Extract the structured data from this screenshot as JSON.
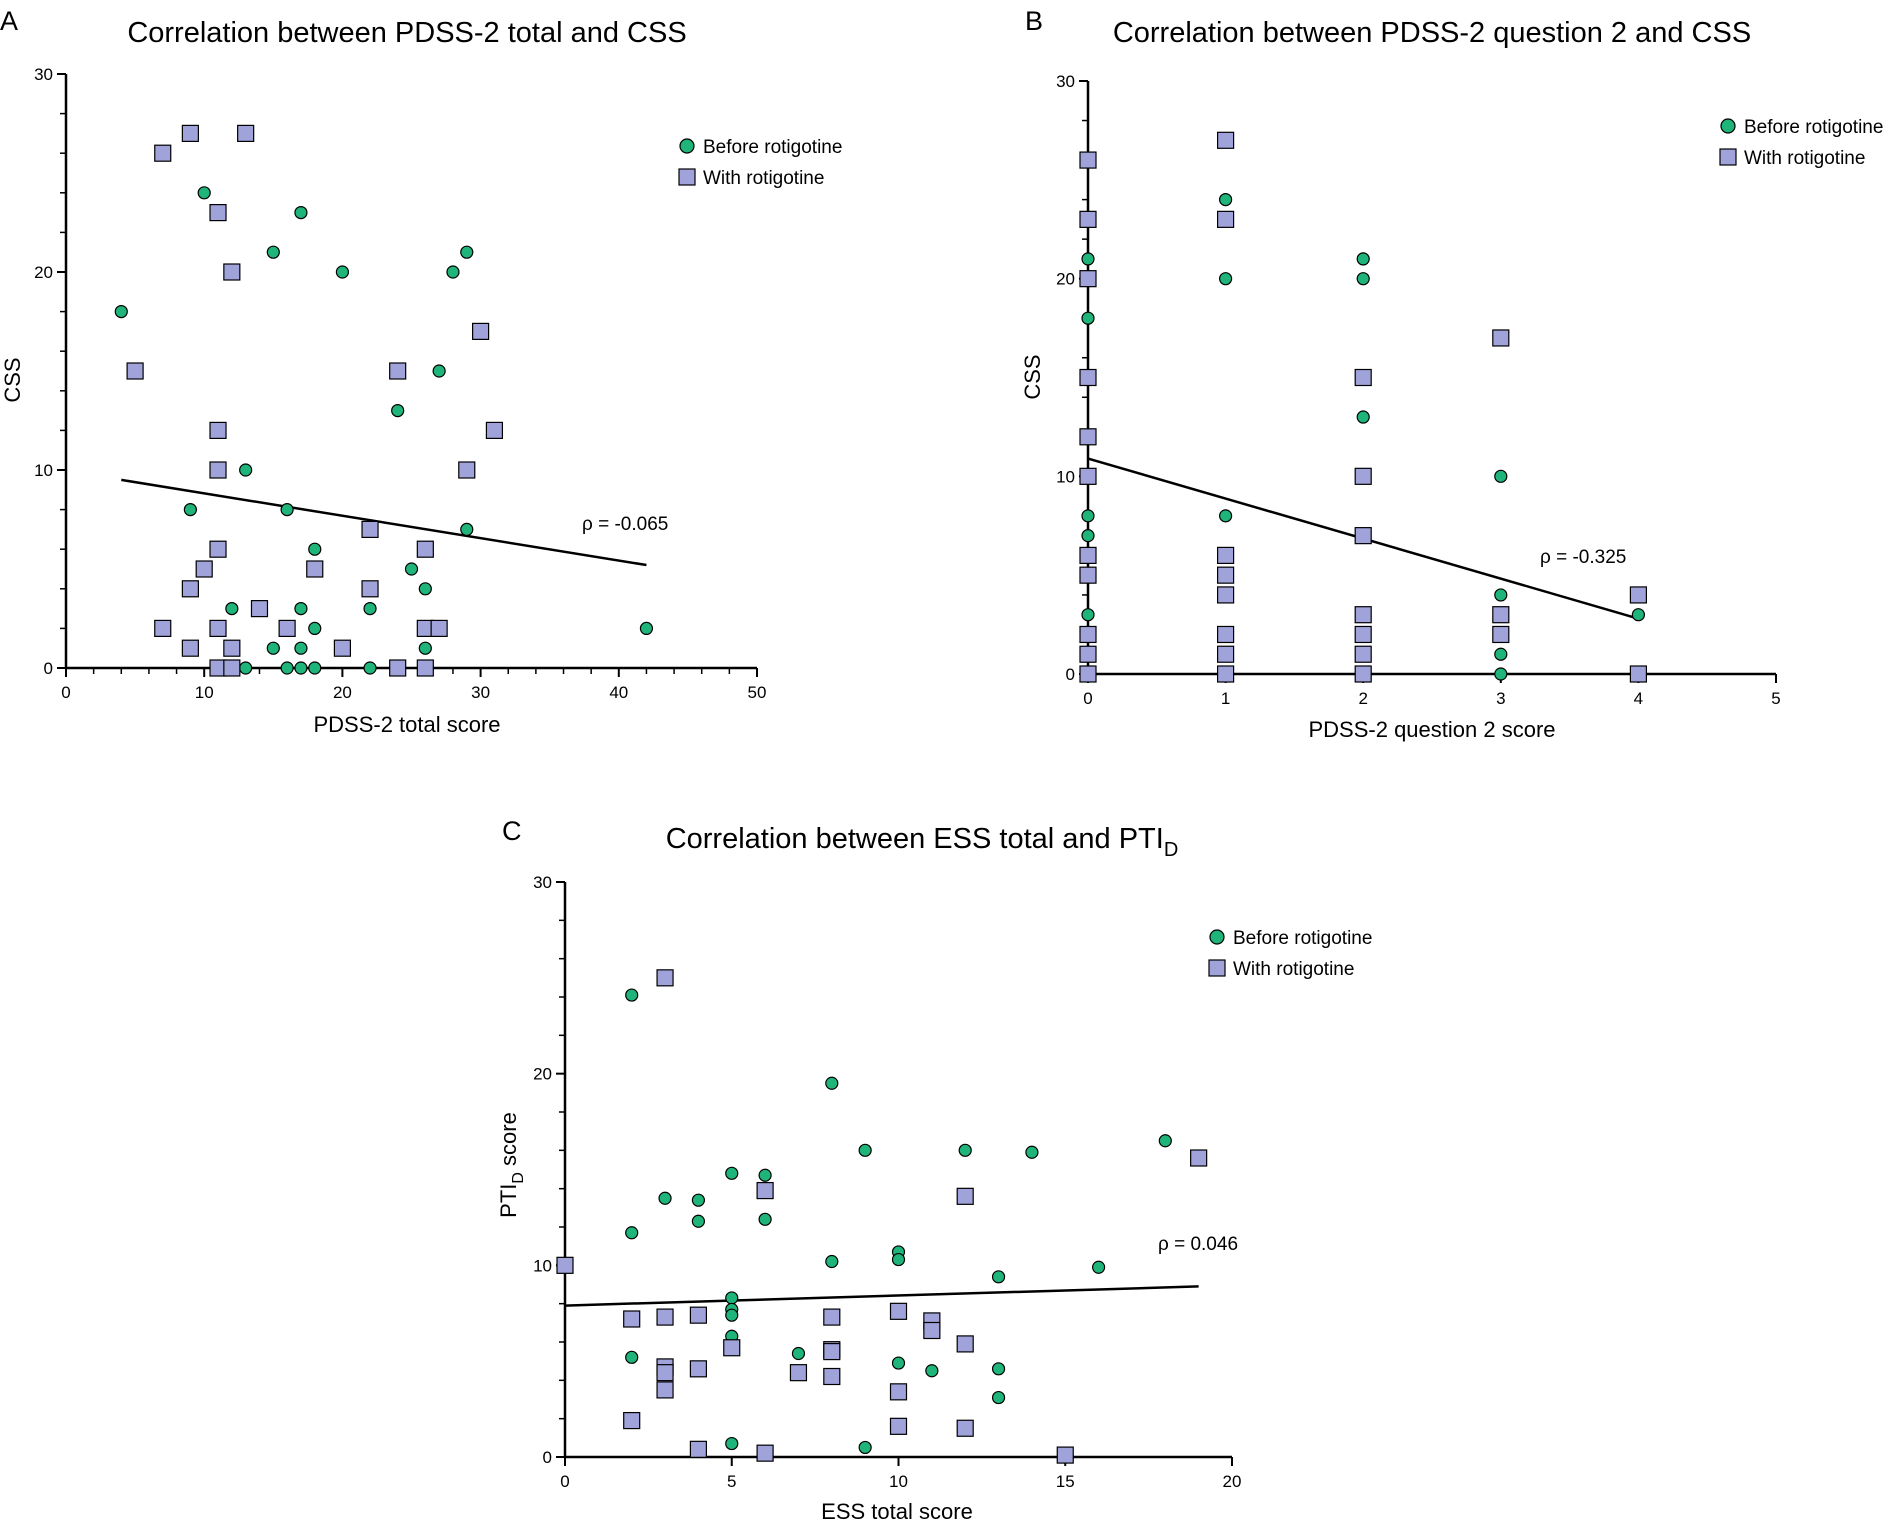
{
  "chart_data": [
    {
      "type": "scatter",
      "panel": "A",
      "title": "Correlation between PDSS-2 total and CSS",
      "xlabel": "PDSS-2 total score",
      "ylabel": "CSS",
      "xlim": [
        0,
        50
      ],
      "ylim": [
        0,
        30
      ],
      "x_ticks": [
        0,
        10,
        20,
        30,
        40,
        50
      ],
      "y_ticks": [
        0,
        10,
        20,
        30
      ],
      "legend_position": "top-right",
      "correlation_label": "ρ = -0.065",
      "fit_line": {
        "x": [
          4,
          42
        ],
        "y": [
          9.5,
          5.2
        ]
      },
      "series": [
        {
          "name": "Before rotigotine",
          "marker": "circle",
          "color": "#1fb57a",
          "x": [
            4,
            10,
            17,
            15,
            20,
            28,
            29,
            27,
            24,
            13,
            9,
            16,
            29,
            18,
            25,
            26,
            12,
            17,
            18,
            22,
            26,
            15,
            17,
            13,
            16,
            17,
            18,
            22,
            26,
            42
          ],
          "y": [
            18,
            24,
            23,
            21,
            20,
            20,
            21,
            15,
            13,
            10,
            8,
            8,
            7,
            6,
            5,
            4,
            3,
            3,
            2,
            3,
            1,
            1,
            1,
            0,
            0,
            0,
            0,
            0,
            0,
            2
          ]
        },
        {
          "name": "With rotigotine",
          "marker": "square",
          "color": "#9fa3d9",
          "x": [
            9,
            13,
            7,
            11,
            12,
            5,
            30,
            24,
            11,
            31,
            11,
            29,
            22,
            11,
            26,
            10,
            18,
            9,
            22,
            14,
            7,
            11,
            16,
            26,
            27,
            9,
            12,
            20,
            11,
            12,
            24,
            26
          ],
          "y": [
            27,
            27,
            26,
            23,
            20,
            15,
            17,
            15,
            12,
            12,
            10,
            10,
            7,
            6,
            6,
            5,
            5,
            4,
            4,
            3,
            2,
            2,
            2,
            2,
            2,
            1,
            1,
            1,
            0,
            0,
            0,
            0
          ]
        }
      ]
    },
    {
      "type": "scatter",
      "panel": "B",
      "title": "Correlation between PDSS-2 question 2 and CSS",
      "xlabel": "PDSS-2 question 2 score",
      "ylabel": "CSS",
      "xlim": [
        0,
        5
      ],
      "ylim": [
        0,
        30
      ],
      "x_ticks": [
        0,
        1,
        2,
        3,
        4,
        5
      ],
      "y_ticks": [
        0,
        10,
        20,
        30
      ],
      "legend_position": "top-right",
      "correlation_label": "ρ = -0.325",
      "fit_line": {
        "x": [
          0,
          4
        ],
        "y": [
          10.9,
          2.8
        ]
      },
      "series": [
        {
          "name": "Before rotigotine",
          "marker": "circle",
          "color": "#1fb57a",
          "x": [
            0,
            0,
            0,
            0,
            0,
            0,
            0,
            1,
            1,
            1,
            2,
            2,
            2,
            2,
            2,
            3,
            3,
            3,
            3,
            4
          ],
          "y": [
            21,
            18,
            8,
            7,
            6,
            3,
            0,
            24,
            20,
            8,
            21,
            20,
            13,
            3,
            0,
            10,
            4,
            1,
            0,
            3
          ]
        },
        {
          "name": "With rotigotine",
          "marker": "square",
          "color": "#9fa3d9",
          "x": [
            0,
            0,
            0,
            0,
            0,
            0,
            0,
            0,
            0,
            0,
            0,
            1,
            1,
            1,
            1,
            1,
            1,
            1,
            1,
            2,
            2,
            2,
            2,
            2,
            2,
            2,
            3,
            3,
            3,
            4,
            4
          ],
          "y": [
            26,
            23,
            20,
            15,
            12,
            10,
            6,
            5,
            2,
            1,
            0,
            27,
            23,
            6,
            5,
            4,
            2,
            1,
            0,
            15,
            10,
            7,
            3,
            2,
            1,
            0,
            17,
            3,
            2,
            4,
            0
          ]
        }
      ]
    },
    {
      "type": "scatter",
      "panel": "C",
      "title": "Correlation between ESS total and PTI",
      "title_subscript": "D",
      "xlabel": "ESS total score",
      "ylabel": "PTI",
      "ylabel_subscript": "D",
      "ylabel_suffix": " score",
      "xlim": [
        0,
        20
      ],
      "ylim": [
        0,
        30
      ],
      "x_ticks": [
        0,
        5,
        10,
        15,
        20
      ],
      "y_ticks": [
        0,
        10,
        20,
        30
      ],
      "legend_position": "top-right",
      "correlation_label": "ρ = 0.046",
      "fit_line": {
        "x": [
          0,
          19
        ],
        "y": [
          7.9,
          8.9
        ]
      },
      "series": [
        {
          "name": "Before rotigotine",
          "marker": "circle",
          "color": "#1fb57a",
          "x": [
            2,
            8,
            3,
            5,
            6,
            4,
            2,
            4,
            6,
            9,
            12,
            14,
            18,
            16,
            13,
            8,
            10,
            10,
            5,
            5,
            5,
            5,
            7,
            10,
            11,
            2,
            13,
            13,
            5,
            9
          ],
          "y": [
            24.1,
            19.5,
            13.5,
            14.8,
            14.7,
            13.4,
            11.7,
            12.3,
            12.4,
            16.0,
            16.0,
            15.9,
            16.5,
            9.9,
            9.4,
            10.2,
            10.7,
            10.3,
            8.3,
            7.7,
            7.4,
            6.3,
            5.4,
            4.9,
            4.5,
            5.2,
            4.6,
            3.1,
            0.7,
            0.5
          ]
        },
        {
          "name": "With rotigotine",
          "marker": "square",
          "color": "#9fa3d9",
          "x": [
            3,
            6,
            12,
            19,
            0,
            2,
            3,
            4,
            8,
            10,
            11,
            11,
            12,
            5,
            8,
            8,
            3,
            3,
            4,
            7,
            8,
            3,
            10,
            2,
            10,
            12,
            4,
            6,
            15
          ],
          "y": [
            25.0,
            13.9,
            13.6,
            15.6,
            10.0,
            7.2,
            7.3,
            7.4,
            7.3,
            7.6,
            7.1,
            6.6,
            5.9,
            5.7,
            5.6,
            5.5,
            4.7,
            4.4,
            4.6,
            4.4,
            4.2,
            3.5,
            3.4,
            1.9,
            1.6,
            1.5,
            0.4,
            0.2,
            0.1
          ]
        }
      ]
    }
  ]
}
